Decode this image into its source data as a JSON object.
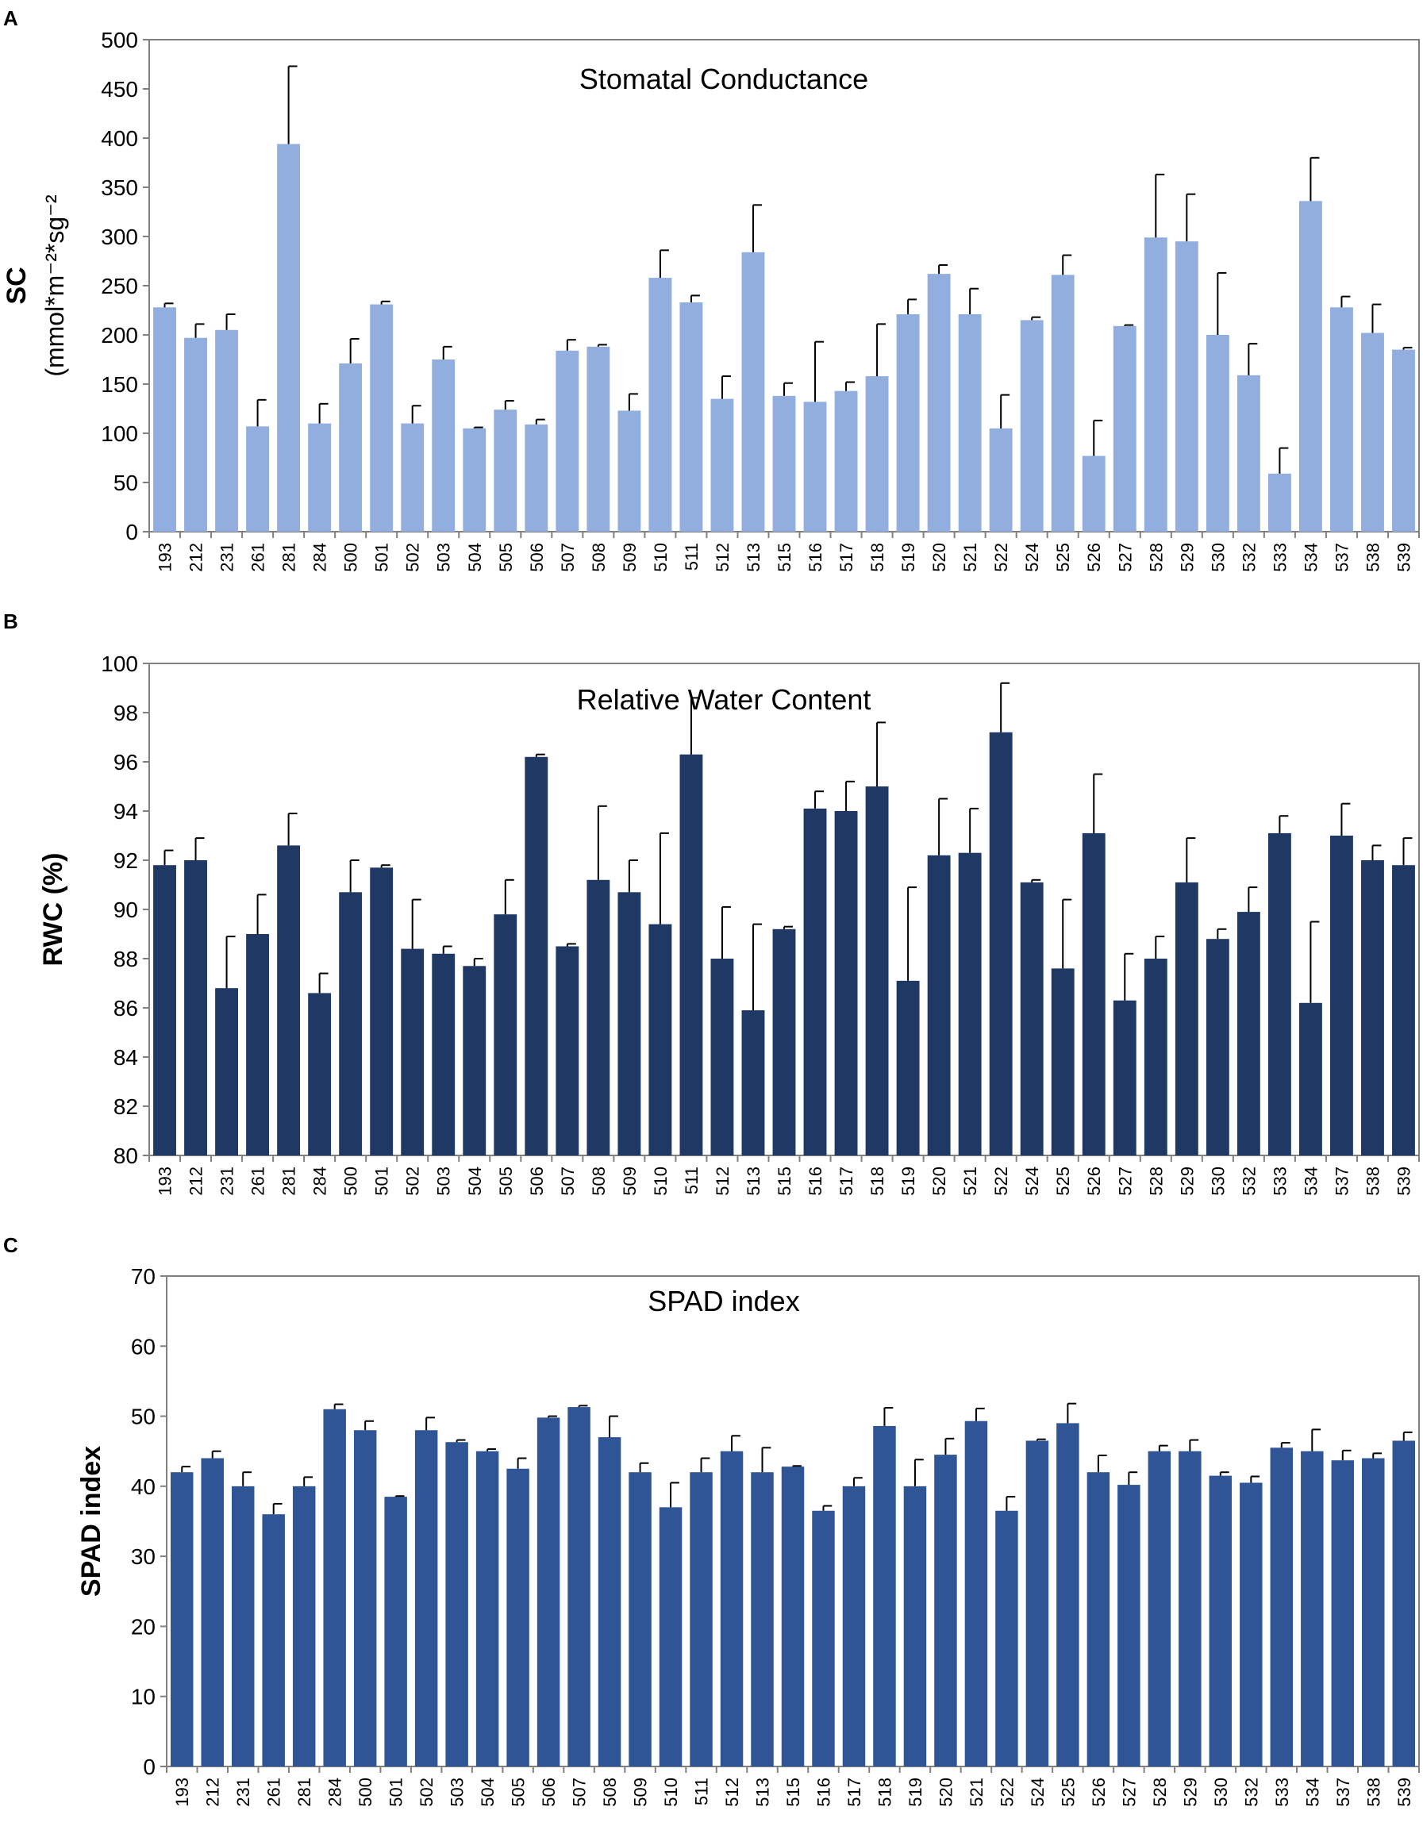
{
  "chart_data": [
    {
      "type": "bar",
      "panel": "A",
      "title": "Stomatal Conductance",
      "ylabel": "SC",
      "ylabel_unit": "(mmol*m-2*sg-2",
      "ylim": [
        0,
        500
      ],
      "yticks": [
        0,
        50,
        100,
        150,
        200,
        250,
        300,
        350,
        400,
        450,
        500
      ],
      "color": "#92AEDE",
      "categories": [
        "193",
        "212",
        "231",
        "261",
        "281",
        "284",
        "500",
        "501",
        "502",
        "503",
        "504",
        "505",
        "506",
        "507",
        "508",
        "509",
        "510",
        "511",
        "512",
        "513",
        "515",
        "516",
        "517",
        "518",
        "519",
        "520",
        "521",
        "522",
        "524",
        "525",
        "526",
        "527",
        "528",
        "529",
        "530",
        "532",
        "533",
        "534",
        "537",
        "538",
        "539"
      ],
      "values": [
        228,
        197,
        205,
        107,
        394,
        110,
        171,
        231,
        110,
        175,
        105,
        124,
        109,
        184,
        188,
        123,
        258,
        233,
        135,
        284,
        138,
        132,
        143,
        158,
        221,
        262,
        221,
        105,
        215,
        261,
        77,
        209,
        299,
        295,
        200,
        159,
        59,
        336,
        228,
        202,
        185
      ],
      "errors": [
        4,
        14,
        16,
        27,
        79,
        20,
        25,
        3,
        18,
        13,
        1,
        9,
        5,
        11,
        2,
        17,
        28,
        7,
        23,
        48,
        13,
        61,
        9,
        53,
        15,
        9,
        26,
        34,
        3,
        20,
        36,
        1,
        64,
        48,
        63,
        32,
        26,
        44,
        11,
        29,
        2
      ]
    },
    {
      "type": "bar",
      "panel": "B",
      "title": "Relative Water Content",
      "ylabel": "RWC (%)",
      "ylim": [
        80,
        100
      ],
      "yticks": [
        80,
        82,
        84,
        86,
        88,
        90,
        92,
        94,
        96,
        98,
        100
      ],
      "color": "#1F3864",
      "categories": [
        "193",
        "212",
        "231",
        "261",
        "281",
        "284",
        "500",
        "501",
        "502",
        "503",
        "504",
        "505",
        "506",
        "507",
        "508",
        "509",
        "510",
        "511",
        "512",
        "513",
        "515",
        "516",
        "517",
        "518",
        "519",
        "520",
        "521",
        "522",
        "524",
        "525",
        "526",
        "527",
        "528",
        "529",
        "530",
        "532",
        "533",
        "534",
        "537",
        "538",
        "539"
      ],
      "values": [
        91.8,
        92.0,
        86.8,
        89.0,
        92.6,
        86.6,
        90.7,
        91.7,
        88.4,
        88.2,
        87.7,
        89.8,
        96.2,
        88.5,
        91.2,
        90.7,
        89.4,
        96.3,
        88.0,
        85.9,
        89.2,
        94.1,
        94.0,
        95.0,
        87.1,
        92.2,
        92.3,
        97.2,
        91.1,
        87.6,
        93.1,
        86.3,
        88.0,
        91.1,
        88.8,
        89.9,
        93.1,
        86.2,
        93.0,
        92.0,
        91.8
      ],
      "errors": [
        0.6,
        0.9,
        2.1,
        1.6,
        1.3,
        0.8,
        1.3,
        0.1,
        2.0,
        0.3,
        0.3,
        1.4,
        0.1,
        0.1,
        3.0,
        1.3,
        3.7,
        2.3,
        2.1,
        3.5,
        0.1,
        0.7,
        1.2,
        2.6,
        3.8,
        2.3,
        1.8,
        2.0,
        0.1,
        2.8,
        2.4,
        1.9,
        0.9,
        1.8,
        0.4,
        1.0,
        0.7,
        3.3,
        1.3,
        0.6,
        1.1
      ]
    },
    {
      "type": "bar",
      "panel": "C",
      "title": "SPAD index",
      "ylabel": "SPAD index",
      "ylim": [
        0,
        70
      ],
      "yticks": [
        0,
        10,
        20,
        30,
        40,
        50,
        60,
        70
      ],
      "color": "#2F5597",
      "categories": [
        "193",
        "212",
        "231",
        "261",
        "281",
        "284",
        "500",
        "501",
        "502",
        "503",
        "504",
        "505",
        "506",
        "507",
        "508",
        "509",
        "510",
        "511",
        "512",
        "513",
        "515",
        "516",
        "517",
        "518",
        "519",
        "520",
        "521",
        "522",
        "524",
        "525",
        "526",
        "527",
        "528",
        "529",
        "530",
        "532",
        "533",
        "534",
        "537",
        "538",
        "539"
      ],
      "values": [
        42,
        44,
        40,
        36,
        40,
        51,
        48,
        38.5,
        48,
        46.3,
        45,
        42.5,
        49.8,
        51.3,
        47,
        42,
        37,
        42,
        45,
        42,
        42.8,
        36.5,
        40,
        48.6,
        40,
        44.5,
        49.3,
        36.5,
        46.5,
        49,
        42,
        40.2,
        45,
        45,
        41.5,
        40.5,
        45.5,
        45,
        43.7,
        44,
        46.5
      ],
      "errors": [
        0.8,
        1.0,
        2.0,
        1.5,
        1.3,
        0.7,
        1.3,
        0.1,
        1.8,
        0.3,
        0.3,
        1.5,
        0.2,
        0.2,
        3.0,
        1.3,
        3.5,
        2.0,
        2.2,
        3.5,
        0.1,
        0.7,
        1.2,
        2.6,
        3.8,
        2.3,
        1.8,
        2.0,
        0.2,
        2.8,
        2.4,
        1.8,
        0.8,
        1.6,
        0.5,
        0.9,
        0.7,
        3.1,
        1.4,
        0.7,
        1.2
      ]
    }
  ],
  "panels": {
    "a": {
      "letter": "A",
      "title": "Stomatal Conductance",
      "ylabel": "SC",
      "ylabel_unit": "(mmol*m-2*sg-2"
    },
    "b": {
      "letter": "B",
      "title": "Relative Water Content",
      "ylabel": "RWC (%)"
    },
    "c": {
      "letter": "C",
      "title": "SPAD index",
      "ylabel": "SPAD index"
    }
  }
}
